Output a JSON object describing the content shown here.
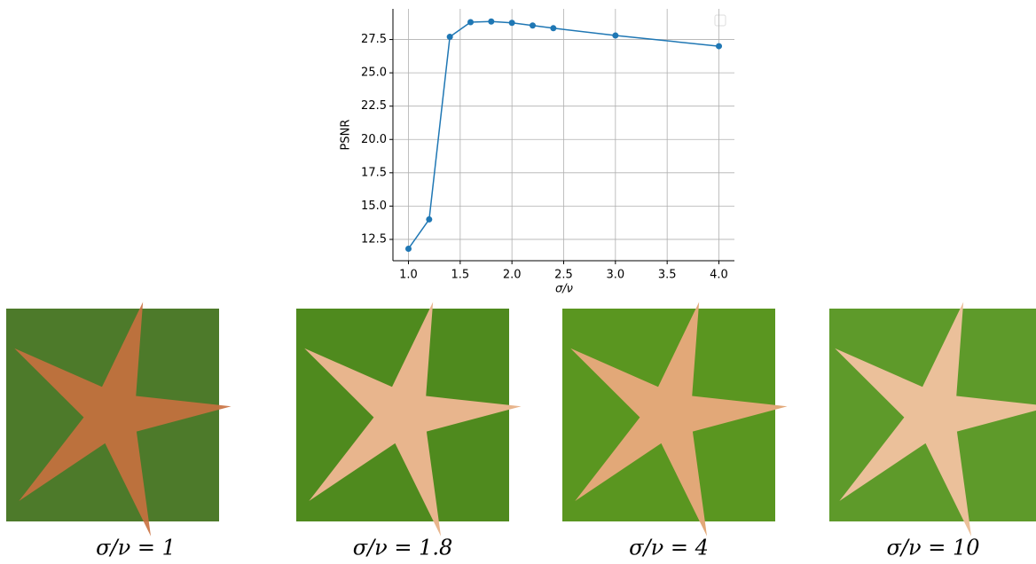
{
  "chart_data": {
    "type": "line",
    "xlabel": "σ/ν",
    "ylabel": "PSNR",
    "x": [
      1.0,
      1.2,
      1.4,
      1.6,
      1.8,
      2.0,
      2.2,
      2.4,
      3.0,
      4.0
    ],
    "values": [
      11.8,
      14.0,
      27.7,
      28.8,
      28.85,
      28.75,
      28.55,
      28.35,
      27.8,
      27.0
    ],
    "color": "#1f77b4",
    "xlim": [
      0.85,
      4.15
    ],
    "xticks": [
      {
        "value": 1.0,
        "label": "1.0"
      },
      1.5,
      {
        "value": 2.0,
        "label": "2.0"
      },
      2.5,
      {
        "value": 3.0,
        "label": "3.0"
      },
      3.5,
      {
        "value": 4.0,
        "label": "4.0"
      }
    ],
    "ylim": [
      10.9,
      29.8
    ],
    "yticks": [
      12.5,
      {
        "value": 15,
        "label": "15.0"
      },
      17.5,
      {
        "value": 20,
        "label": "20.0"
      },
      22.5,
      {
        "value": 25,
        "label": "25.0"
      },
      27.5
    ],
    "grid": true
  },
  "images": [
    {
      "caption": "σ/ν = 1"
    },
    {
      "caption": "σ/ν = 1.8"
    },
    {
      "caption": "σ/ν = 4"
    },
    {
      "caption": "σ/ν = 10"
    }
  ]
}
